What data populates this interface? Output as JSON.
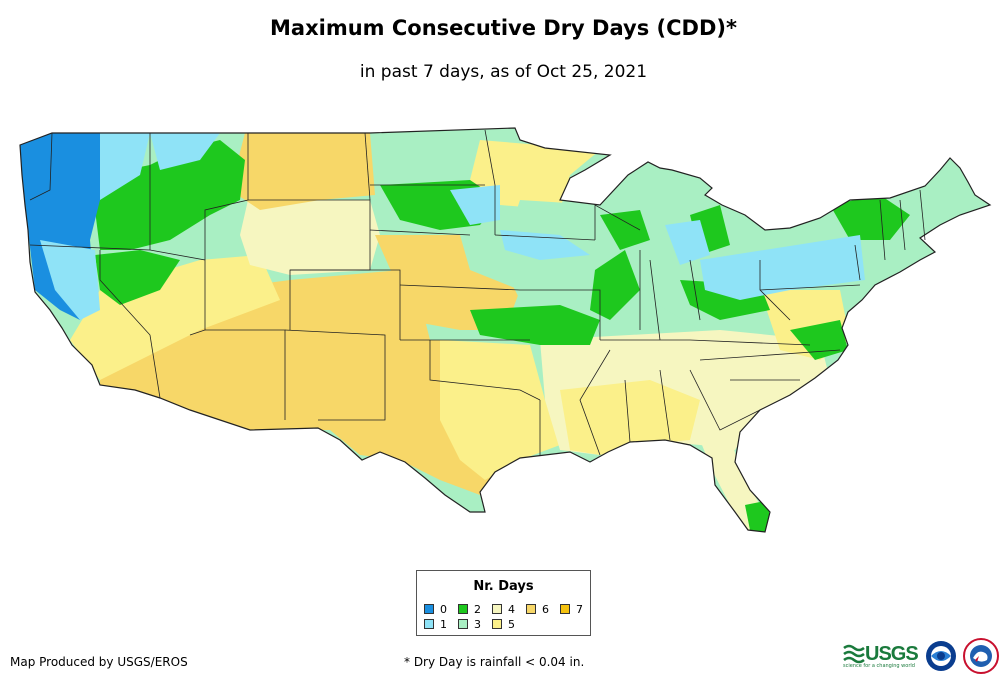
{
  "header": {
    "title": "Maximum Consecutive Dry Days (CDD)*",
    "subtitle": "in past 7 days, as of Oct 25, 2021"
  },
  "legend": {
    "title": "Nr. Days",
    "items": [
      {
        "label": "0",
        "color": "#1a8fe0"
      },
      {
        "label": "1",
        "color": "#8fe3f7"
      },
      {
        "label": "2",
        "color": "#1ec81e"
      },
      {
        "label": "3",
        "color": "#a9efc3"
      },
      {
        "label": "4",
        "color": "#f6f6c0"
      },
      {
        "label": "5",
        "color": "#fbf08a"
      },
      {
        "label": "6",
        "color": "#f7d768"
      },
      {
        "label": "7",
        "color": "#f5c20f"
      }
    ]
  },
  "footer": {
    "credit": "Map Produced by USGS/EROS",
    "footnote": "* Dry Day is rainfall < 0.04 in.",
    "usgs_logo": "USGS",
    "usgs_tagline": "science for a changing world"
  },
  "icons": [
    "usgs-logo-icon",
    "noaa-logo-icon",
    "nws-logo-icon"
  ]
}
